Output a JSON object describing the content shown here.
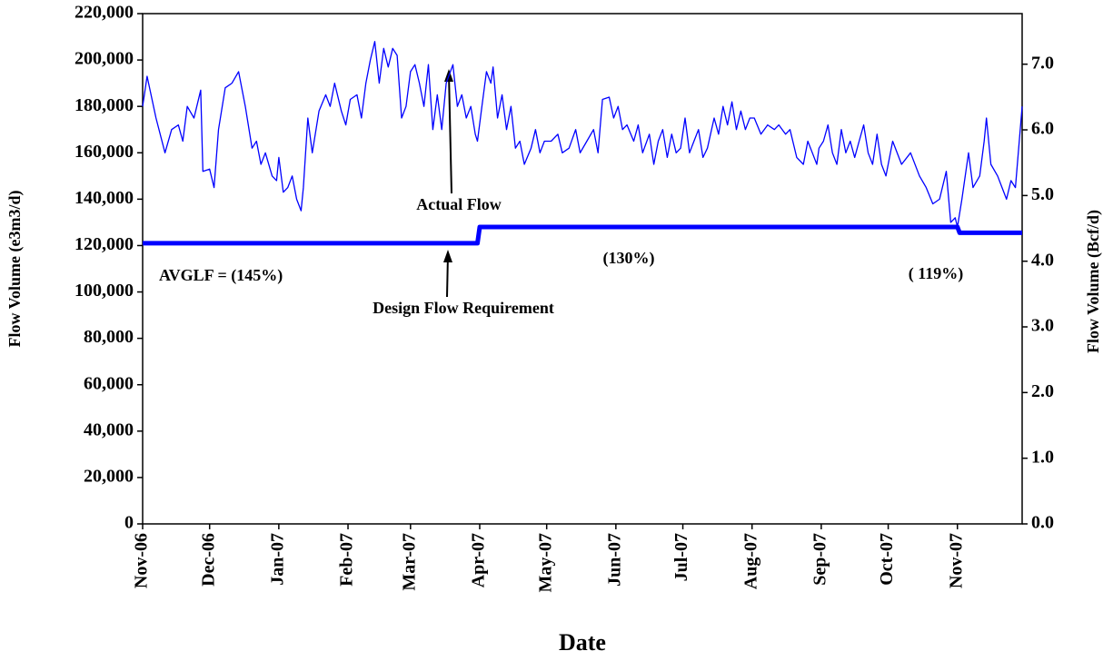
{
  "chart_data": {
    "type": "line",
    "xlabel": "Date",
    "ylabel": "Flow Volume  (e3m3/d)",
    "y2label": "Flow Volume  (Bcf/d)",
    "xlim": [
      0,
      394
    ],
    "xticks": [
      {
        "value": 0,
        "label": "Nov-06"
      },
      {
        "value": 30,
        "label": "Dec-06"
      },
      {
        "value": 61,
        "label": "Jan-07"
      },
      {
        "value": 92,
        "label": "Feb-07"
      },
      {
        "value": 120,
        "label": "Mar-07"
      },
      {
        "value": 151,
        "label": "Apr-07"
      },
      {
        "value": 181,
        "label": "May-07"
      },
      {
        "value": 212,
        "label": "Jun-07"
      },
      {
        "value": 242,
        "label": "Jul-07"
      },
      {
        "value": 273,
        "label": "Aug-07"
      },
      {
        "value": 304,
        "label": "Sep-07"
      },
      {
        "value": 334,
        "label": "Oct-07"
      },
      {
        "value": 365,
        "label": "Nov-07"
      }
    ],
    "ylim": [
      0,
      220000
    ],
    "yticks": [
      0,
      {
        "value": 20000,
        "label": "20,000"
      },
      {
        "value": 40000,
        "label": "40,000"
      },
      {
        "value": 60000,
        "label": "60,000"
      },
      {
        "value": 80000,
        "label": "80,000"
      },
      {
        "value": 100000,
        "label": "100,000"
      },
      {
        "value": 120000,
        "label": "120,000"
      },
      {
        "value": 140000,
        "label": "140,000"
      },
      {
        "value": 160000,
        "label": "160,000"
      },
      {
        "value": 180000,
        "label": "180,000"
      },
      {
        "value": 200000,
        "label": "200,000"
      },
      {
        "value": 220000,
        "label": "220,000"
      }
    ],
    "y2lim": [
      0,
      7.77
    ],
    "y2ticks": [
      {
        "value": 0,
        "label": "0.0"
      },
      {
        "value": 1,
        "label": "1.0"
      },
      {
        "value": 2,
        "label": "2.0"
      },
      {
        "value": 3,
        "label": "3.0"
      },
      {
        "value": 4,
        "label": "4.0"
      },
      {
        "value": 5,
        "label": "5.0"
      },
      {
        "value": 6,
        "label": "6.0"
      },
      {
        "value": 7,
        "label": "7.0"
      }
    ],
    "series": [
      {
        "name": "Actual Flow",
        "color": "#0000ff",
        "width": 1.3,
        "x": [
          0,
          2,
          6,
          10,
          13,
          16,
          18,
          20,
          23,
          26,
          27,
          30,
          32,
          34,
          37,
          40,
          43,
          46,
          49,
          51,
          53,
          55,
          58,
          60,
          61,
          63,
          65,
          67,
          69,
          71,
          72,
          74,
          76,
          79,
          82,
          84,
          86,
          89,
          91,
          93,
          96,
          98,
          100,
          102,
          104,
          106,
          108,
          110,
          112,
          114,
          116,
          118,
          120,
          122,
          124,
          126,
          128,
          130,
          132,
          134,
          136,
          139,
          141,
          143,
          145,
          147,
          149,
          150,
          152,
          154,
          156,
          157,
          159,
          161,
          163,
          165,
          167,
          169,
          171,
          174,
          176,
          178,
          180,
          183,
          186,
          188,
          191,
          194,
          196,
          199,
          202,
          204,
          206,
          209,
          211,
          213,
          215,
          217,
          220,
          222,
          224,
          227,
          229,
          231,
          233,
          235,
          237,
          239,
          241,
          243,
          245,
          247,
          249,
          251,
          253,
          256,
          258,
          260,
          262,
          264,
          266,
          268,
          270,
          272,
          274,
          277,
          280,
          283,
          285,
          288,
          290,
          293,
          296,
          298,
          300,
          302,
          303,
          305,
          307,
          309,
          311,
          313,
          315,
          317,
          319,
          321,
          323,
          325,
          327,
          329,
          331,
          333,
          336,
          340,
          344,
          348,
          351,
          354,
          357,
          360,
          362,
          364,
          365,
          367,
          370,
          372,
          375,
          377,
          378,
          380,
          383,
          385,
          387,
          389,
          391,
          394
        ],
        "values": [
          180000,
          193000,
          175000,
          160000,
          170000,
          172000,
          165000,
          180000,
          175000,
          187000,
          152000,
          153000,
          145000,
          170000,
          188000,
          190000,
          195000,
          180000,
          162000,
          165000,
          155000,
          160000,
          150000,
          148000,
          158000,
          143000,
          145000,
          150000,
          140000,
          135000,
          145000,
          175000,
          160000,
          178000,
          185000,
          180000,
          190000,
          178000,
          172000,
          183000,
          185000,
          175000,
          190000,
          200000,
          208000,
          190000,
          205000,
          197000,
          205000,
          202000,
          175000,
          180000,
          195000,
          198000,
          190000,
          180000,
          198000,
          170000,
          185000,
          170000,
          190000,
          198000,
          180000,
          185000,
          175000,
          180000,
          168000,
          165000,
          180000,
          195000,
          190000,
          197000,
          175000,
          185000,
          170000,
          180000,
          162000,
          165000,
          155000,
          162000,
          170000,
          160000,
          165000,
          165000,
          168000,
          160000,
          162000,
          170000,
          160000,
          165000,
          170000,
          160000,
          183000,
          184000,
          175000,
          180000,
          170000,
          172000,
          165000,
          172000,
          160000,
          168000,
          155000,
          165000,
          170000,
          158000,
          168000,
          160000,
          162000,
          175000,
          160000,
          165000,
          170000,
          158000,
          162000,
          175000,
          168000,
          180000,
          172000,
          182000,
          170000,
          178000,
          170000,
          175000,
          175000,
          168000,
          172000,
          170000,
          172000,
          168000,
          170000,
          158000,
          155000,
          165000,
          160000,
          155000,
          162000,
          165000,
          172000,
          160000,
          155000,
          170000,
          160000,
          165000,
          158000,
          165000,
          172000,
          160000,
          155000,
          168000,
          155000,
          150000,
          165000,
          155000,
          160000,
          150000,
          145000,
          138000,
          140000,
          152000,
          130000,
          132000,
          128000,
          140000,
          160000,
          145000,
          150000,
          165000,
          175000,
          155000,
          150000,
          145000,
          140000,
          148000,
          145000,
          180000
        ]
      },
      {
        "name": "Design Flow Requirement",
        "color": "#0000ff",
        "width": 5,
        "x": [
          0,
          150,
          151,
          365,
          366,
          394
        ],
        "values": [
          121000,
          121000,
          128000,
          128000,
          125500,
          125500
        ]
      }
    ],
    "annotations": [
      "AVGLF = (145%)",
      "(130%)",
      "( 119%)"
    ]
  }
}
